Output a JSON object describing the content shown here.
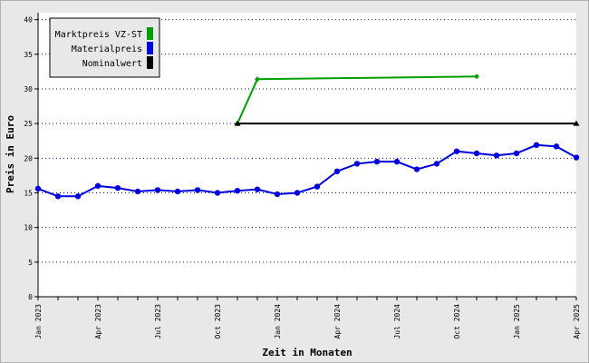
{
  "chart_data": {
    "type": "line",
    "xlabel": "Zeit in Monaten",
    "ylabel": "Preis in Euro",
    "ylim": [
      0,
      41
    ],
    "yticks": [
      0,
      5,
      10,
      15,
      20,
      25,
      30,
      35,
      40
    ],
    "x_start": "2023-01",
    "x_end": "2025-04",
    "xtick_labels": [
      {
        "month": "2023-01",
        "label": "Jan 2023"
      },
      {
        "month": "2023-04",
        "label": "Apr 2023"
      },
      {
        "month": "2023-07",
        "label": "Jul 2023"
      },
      {
        "month": "2023-10",
        "label": "Oct 2023"
      },
      {
        "month": "2024-01",
        "label": "Jan 2024"
      },
      {
        "month": "2024-04",
        "label": "Apr 2024"
      },
      {
        "month": "2024-07",
        "label": "Jul 2024"
      },
      {
        "month": "2024-10",
        "label": "Oct 2024"
      },
      {
        "month": "2025-01",
        "label": "Jan 2025"
      },
      {
        "month": "2025-04",
        "label": "Apr 2025"
      }
    ],
    "grid": true,
    "legend_position": "top-left",
    "series": [
      {
        "name": "Marktpreis VZ-ST",
        "color": "#00a000",
        "marker": "diamond",
        "points": [
          {
            "x": "2023-11",
            "y": 25.0
          },
          {
            "x": "2023-12",
            "y": 31.4
          },
          {
            "x": "2024-11",
            "y": 31.8
          }
        ]
      },
      {
        "name": "Materialpreis",
        "color": "#0000e0",
        "marker": "circle",
        "points": [
          {
            "x": "2023-01",
            "y": 15.6
          },
          {
            "x": "2023-02",
            "y": 14.5
          },
          {
            "x": "2023-03",
            "y": 14.5
          },
          {
            "x": "2023-04",
            "y": 16.0
          },
          {
            "x": "2023-05",
            "y": 15.7
          },
          {
            "x": "2023-06",
            "y": 15.2
          },
          {
            "x": "2023-07",
            "y": 15.4
          },
          {
            "x": "2023-08",
            "y": 15.2
          },
          {
            "x": "2023-09",
            "y": 15.4
          },
          {
            "x": "2023-10",
            "y": 15.0
          },
          {
            "x": "2023-11",
            "y": 15.3
          },
          {
            "x": "2023-12",
            "y": 15.5
          },
          {
            "x": "2024-01",
            "y": 14.8
          },
          {
            "x": "2024-02",
            "y": 15.0
          },
          {
            "x": "2024-03",
            "y": 15.9
          },
          {
            "x": "2024-04",
            "y": 18.1
          },
          {
            "x": "2024-05",
            "y": 19.2
          },
          {
            "x": "2024-06",
            "y": 19.5
          },
          {
            "x": "2024-07",
            "y": 19.5
          },
          {
            "x": "2024-08",
            "y": 18.4
          },
          {
            "x": "2024-09",
            "y": 19.2
          },
          {
            "x": "2024-10",
            "y": 21.0
          },
          {
            "x": "2024-11",
            "y": 20.7
          },
          {
            "x": "2024-12",
            "y": 20.4
          },
          {
            "x": "2025-01",
            "y": 20.7
          },
          {
            "x": "2025-02",
            "y": 21.9
          },
          {
            "x": "2025-03",
            "y": 21.7
          },
          {
            "x": "2025-04",
            "y": 20.1
          }
        ]
      },
      {
        "name": "Nominalwert",
        "color": "#000000",
        "marker": "triangle",
        "points": [
          {
            "x": "2023-11",
            "y": 25.0
          },
          {
            "x": "2025-04",
            "y": 25.0
          }
        ]
      }
    ]
  }
}
